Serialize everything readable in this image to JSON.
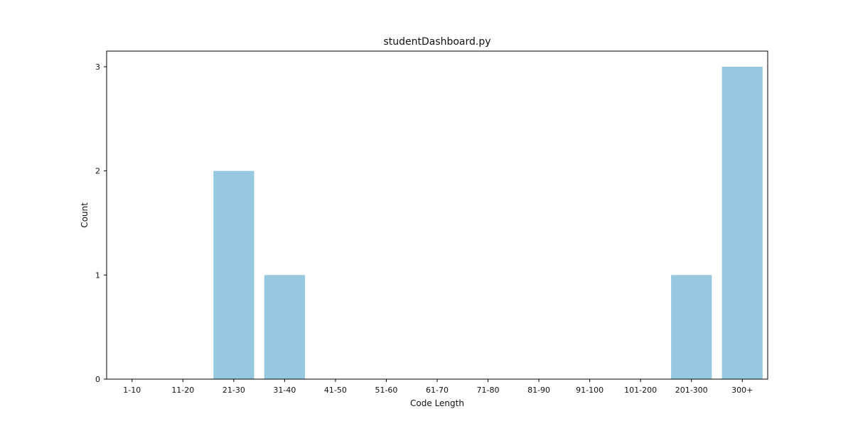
{
  "chart_data": {
    "type": "bar",
    "title": "studentDashboard.py",
    "xlabel": "Code Length",
    "ylabel": "Count",
    "categories": [
      "1-10",
      "11-20",
      "21-30",
      "31-40",
      "41-50",
      "51-60",
      "61-70",
      "71-80",
      "81-90",
      "91-100",
      "101-200",
      "201-300",
      "300+"
    ],
    "values": [
      0,
      0,
      2,
      1,
      0,
      0,
      0,
      0,
      0,
      0,
      0,
      1,
      3
    ],
    "yticks": [
      0,
      1,
      2,
      3
    ],
    "ylim": [
      0,
      3.15
    ],
    "bar_color": "#96c9df",
    "grid": false
  }
}
